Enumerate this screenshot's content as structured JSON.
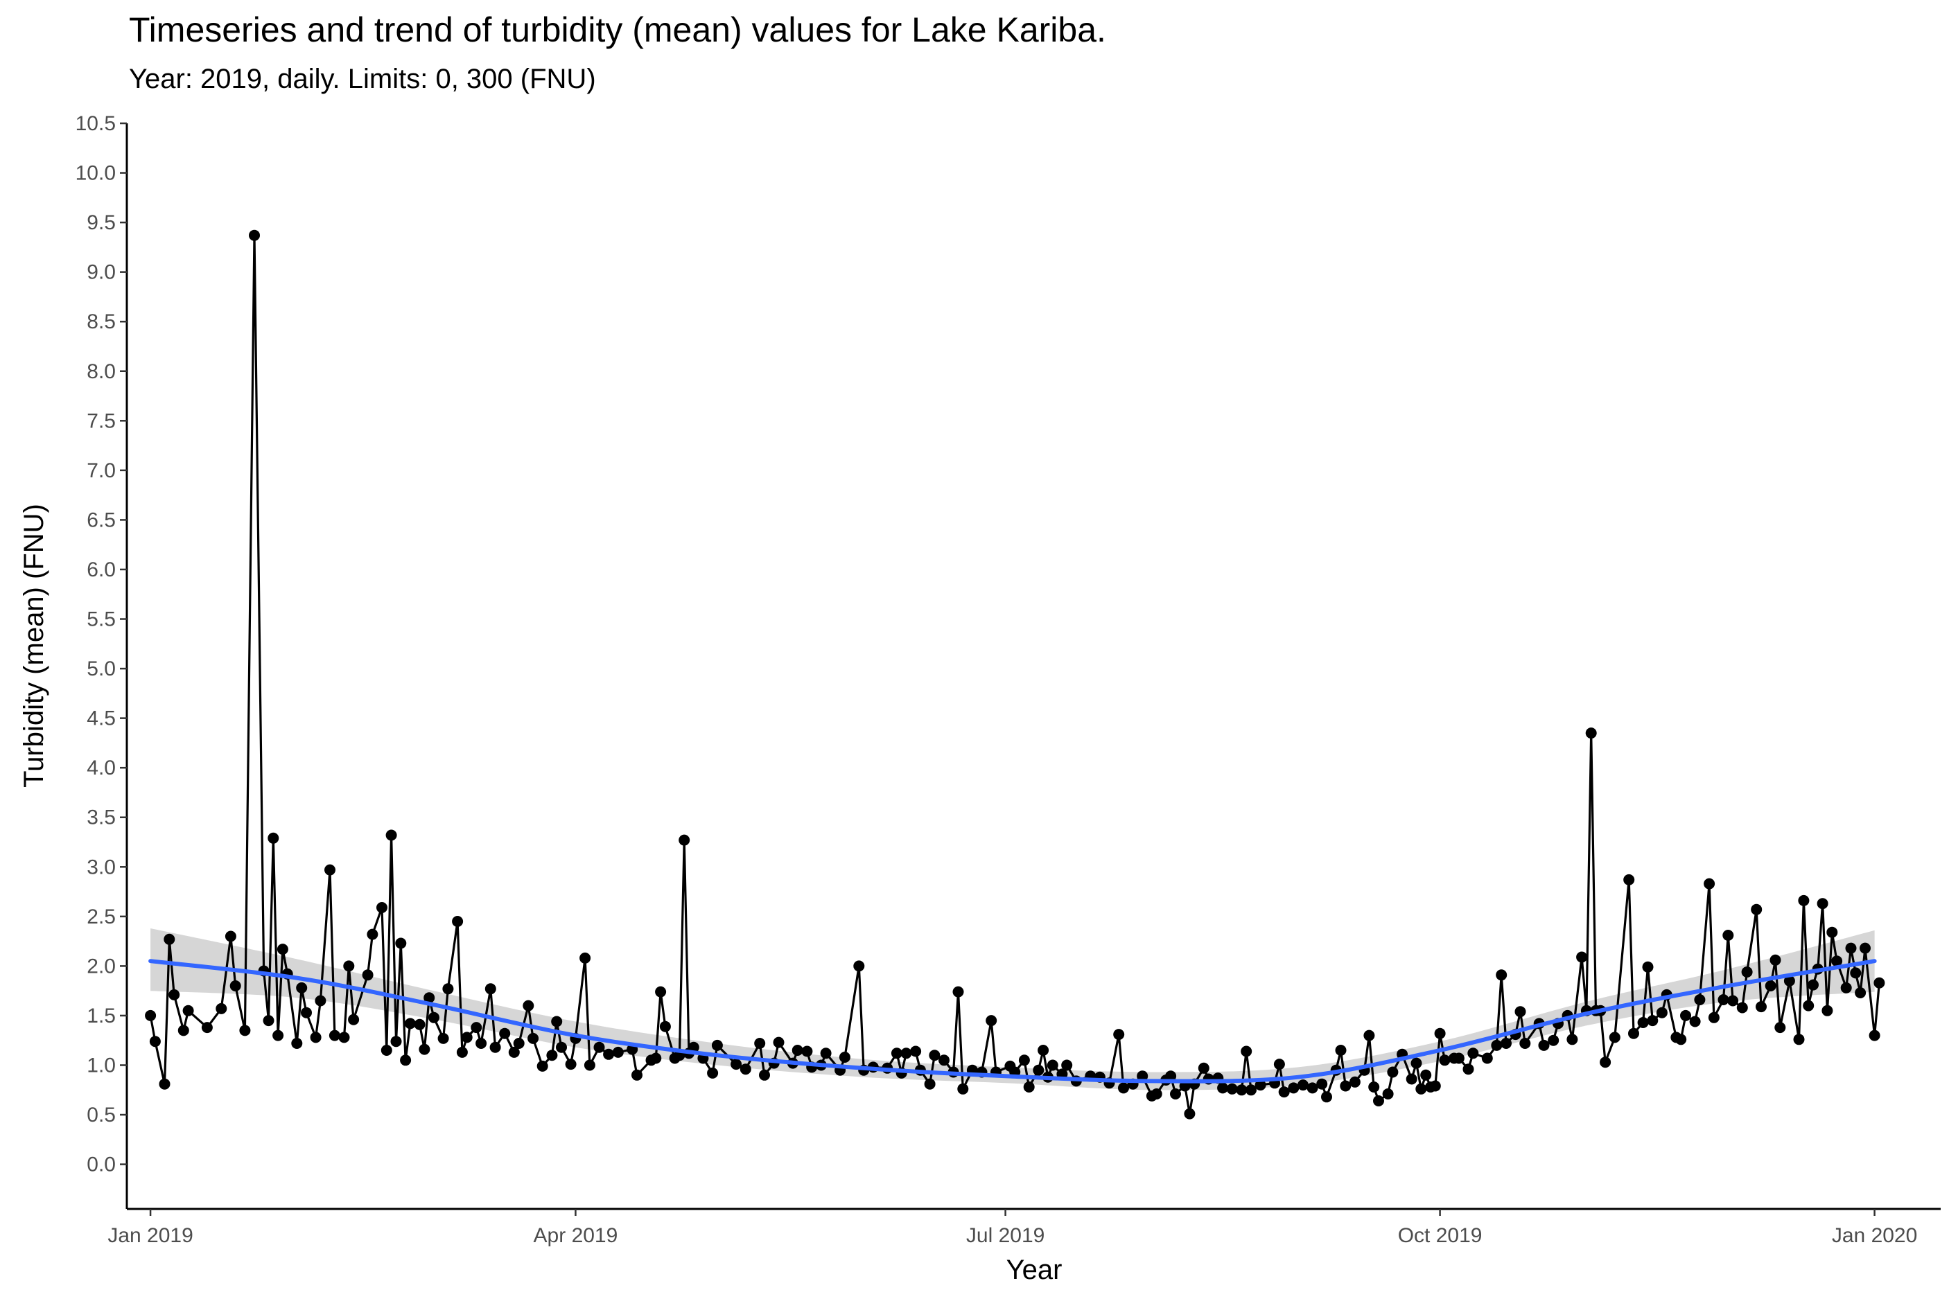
{
  "chart_data": {
    "type": "line",
    "title": "Timeseries and trend of turbidity (mean) values for Lake Kariba.",
    "subtitle": "Year: 2019, daily. Limits: 0, 300 (FNU)",
    "xlabel": "Year",
    "ylabel": "Turbidity (mean) (FNU)",
    "xlim": [
      "2018-12-27",
      "2020-01-15"
    ],
    "ylim": [
      -0.45,
      10.5
    ],
    "x_ticks": [
      {
        "date": "2019-01-01",
        "label": "Jan 2019"
      },
      {
        "date": "2019-04-01",
        "label": "Apr 2019"
      },
      {
        "date": "2019-07-01",
        "label": "Jul 2019"
      },
      {
        "date": "2019-10-01",
        "label": "Oct 2019"
      },
      {
        "date": "2020-01-01",
        "label": "Jan 2020"
      }
    ],
    "y_ticks": [
      0.0,
      0.5,
      1.0,
      1.5,
      2.0,
      2.5,
      3.0,
      3.5,
      4.0,
      4.5,
      5.0,
      5.5,
      6.0,
      6.5,
      7.0,
      7.5,
      8.0,
      8.5,
      9.0,
      9.5,
      10.0,
      10.5
    ],
    "grid": false,
    "colors": {
      "series": "#000000",
      "trend": "#3366FF",
      "band": "#c8c8c8"
    },
    "series": [
      {
        "style": "line+points",
        "points": [
          [
            "2019-01-01",
            1.5
          ],
          [
            "2019-01-02",
            1.24
          ],
          [
            "2019-01-04",
            0.81
          ],
          [
            "2019-01-05",
            2.27
          ],
          [
            "2019-01-06",
            1.71
          ],
          [
            "2019-01-08",
            1.35
          ],
          [
            "2019-01-09",
            1.55
          ],
          [
            "2019-01-13",
            1.38
          ],
          [
            "2019-01-16",
            1.57
          ],
          [
            "2019-01-18",
            2.3
          ],
          [
            "2019-01-19",
            1.8
          ],
          [
            "2019-01-21",
            1.35
          ],
          [
            "2019-01-23",
            9.37
          ],
          [
            "2019-01-25",
            1.95
          ],
          [
            "2019-01-26",
            1.45
          ],
          [
            "2019-01-27",
            3.29
          ],
          [
            "2019-01-28",
            1.3
          ],
          [
            "2019-01-29",
            2.17
          ],
          [
            "2019-01-30",
            1.92
          ],
          [
            "2019-02-01",
            1.22
          ],
          [
            "2019-02-02",
            1.78
          ],
          [
            "2019-02-03",
            1.53
          ],
          [
            "2019-02-05",
            1.28
          ],
          [
            "2019-02-06",
            1.65
          ],
          [
            "2019-02-08",
            2.97
          ],
          [
            "2019-02-09",
            1.3
          ],
          [
            "2019-02-11",
            1.28
          ],
          [
            "2019-02-12",
            2.0
          ],
          [
            "2019-02-13",
            1.46
          ],
          [
            "2019-02-16",
            1.91
          ],
          [
            "2019-02-17",
            2.32
          ],
          [
            "2019-02-19",
            2.59
          ],
          [
            "2019-02-20",
            1.15
          ],
          [
            "2019-02-21",
            3.32
          ],
          [
            "2019-02-22",
            1.24
          ],
          [
            "2019-02-23",
            2.23
          ],
          [
            "2019-02-24",
            1.05
          ],
          [
            "2019-02-25",
            1.42
          ],
          [
            "2019-02-27",
            1.41
          ],
          [
            "2019-02-28",
            1.16
          ],
          [
            "2019-03-01",
            1.68
          ],
          [
            "2019-03-02",
            1.48
          ],
          [
            "2019-03-04",
            1.27
          ],
          [
            "2019-03-05",
            1.77
          ],
          [
            "2019-03-07",
            2.45
          ],
          [
            "2019-03-08",
            1.13
          ],
          [
            "2019-03-09",
            1.28
          ],
          [
            "2019-03-11",
            1.38
          ],
          [
            "2019-03-12",
            1.22
          ],
          [
            "2019-03-14",
            1.77
          ],
          [
            "2019-03-15",
            1.18
          ],
          [
            "2019-03-17",
            1.32
          ],
          [
            "2019-03-19",
            1.13
          ],
          [
            "2019-03-20",
            1.22
          ],
          [
            "2019-03-22",
            1.6
          ],
          [
            "2019-03-23",
            1.27
          ],
          [
            "2019-03-25",
            0.99
          ],
          [
            "2019-03-27",
            1.1
          ],
          [
            "2019-03-28",
            1.44
          ],
          [
            "2019-03-29",
            1.18
          ],
          [
            "2019-03-31",
            1.01
          ],
          [
            "2019-04-01",
            1.27
          ],
          [
            "2019-04-03",
            2.08
          ],
          [
            "2019-04-04",
            1.0
          ],
          [
            "2019-04-06",
            1.18
          ],
          [
            "2019-04-08",
            1.11
          ],
          [
            "2019-04-10",
            1.13
          ],
          [
            "2019-04-13",
            1.16
          ],
          [
            "2019-04-14",
            0.9
          ],
          [
            "2019-04-17",
            1.05
          ],
          [
            "2019-04-18",
            1.07
          ],
          [
            "2019-04-19",
            1.74
          ],
          [
            "2019-04-20",
            1.39
          ],
          [
            "2019-04-22",
            1.07
          ],
          [
            "2019-04-23",
            1.1
          ],
          [
            "2019-04-24",
            3.27
          ],
          [
            "2019-04-25",
            1.12
          ],
          [
            "2019-04-26",
            1.18
          ],
          [
            "2019-04-28",
            1.07
          ],
          [
            "2019-04-30",
            0.92
          ],
          [
            "2019-05-01",
            1.2
          ],
          [
            "2019-05-05",
            1.01
          ],
          [
            "2019-05-07",
            0.96
          ],
          [
            "2019-05-10",
            1.22
          ],
          [
            "2019-05-11",
            0.9
          ],
          [
            "2019-05-13",
            1.02
          ],
          [
            "2019-05-14",
            1.23
          ],
          [
            "2019-05-17",
            1.02
          ],
          [
            "2019-05-18",
            1.15
          ],
          [
            "2019-05-20",
            1.14
          ],
          [
            "2019-05-21",
            0.98
          ],
          [
            "2019-05-23",
            1.0
          ],
          [
            "2019-05-24",
            1.12
          ],
          [
            "2019-05-27",
            0.95
          ],
          [
            "2019-05-28",
            1.08
          ],
          [
            "2019-05-31",
            2.0
          ],
          [
            "2019-06-01",
            0.95
          ],
          [
            "2019-06-03",
            0.98
          ],
          [
            "2019-06-06",
            0.97
          ],
          [
            "2019-06-08",
            1.12
          ],
          [
            "2019-06-09",
            0.92
          ],
          [
            "2019-06-10",
            1.12
          ],
          [
            "2019-06-12",
            1.14
          ],
          [
            "2019-06-13",
            0.95
          ],
          [
            "2019-06-15",
            0.81
          ],
          [
            "2019-06-16",
            1.1
          ],
          [
            "2019-06-18",
            1.05
          ],
          [
            "2019-06-20",
            0.93
          ],
          [
            "2019-06-21",
            1.74
          ],
          [
            "2019-06-22",
            0.76
          ],
          [
            "2019-06-24",
            0.95
          ],
          [
            "2019-06-26",
            0.93
          ],
          [
            "2019-06-28",
            1.45
          ],
          [
            "2019-06-29",
            0.93
          ],
          [
            "2019-07-02",
            0.99
          ],
          [
            "2019-07-03",
            0.93
          ],
          [
            "2019-07-05",
            1.05
          ],
          [
            "2019-07-06",
            0.78
          ],
          [
            "2019-07-08",
            0.95
          ],
          [
            "2019-07-09",
            1.15
          ],
          [
            "2019-07-10",
            0.88
          ],
          [
            "2019-07-11",
            1.0
          ],
          [
            "2019-07-13",
            0.91
          ],
          [
            "2019-07-14",
            1.0
          ],
          [
            "2019-07-16",
            0.84
          ],
          [
            "2019-07-19",
            0.89
          ],
          [
            "2019-07-21",
            0.88
          ],
          [
            "2019-07-23",
            0.82
          ],
          [
            "2019-07-25",
            1.31
          ],
          [
            "2019-07-26",
            0.77
          ],
          [
            "2019-07-28",
            0.81
          ],
          [
            "2019-07-30",
            0.89
          ],
          [
            "2019-08-01",
            0.69
          ],
          [
            "2019-08-02",
            0.71
          ],
          [
            "2019-08-04",
            0.85
          ],
          [
            "2019-08-05",
            0.89
          ],
          [
            "2019-08-06",
            0.71
          ],
          [
            "2019-08-08",
            0.79
          ],
          [
            "2019-08-09",
            0.51
          ],
          [
            "2019-08-10",
            0.81
          ],
          [
            "2019-08-12",
            0.97
          ],
          [
            "2019-08-13",
            0.86
          ],
          [
            "2019-08-15",
            0.87
          ],
          [
            "2019-08-16",
            0.77
          ],
          [
            "2019-08-18",
            0.76
          ],
          [
            "2019-08-20",
            0.75
          ],
          [
            "2019-08-21",
            1.14
          ],
          [
            "2019-08-22",
            0.75
          ],
          [
            "2019-08-24",
            0.8
          ],
          [
            "2019-08-27",
            0.82
          ],
          [
            "2019-08-28",
            1.01
          ],
          [
            "2019-08-29",
            0.73
          ],
          [
            "2019-08-31",
            0.77
          ],
          [
            "2019-09-02",
            0.8
          ],
          [
            "2019-09-04",
            0.77
          ],
          [
            "2019-09-06",
            0.81
          ],
          [
            "2019-09-07",
            0.68
          ],
          [
            "2019-09-09",
            0.95
          ],
          [
            "2019-09-10",
            1.15
          ],
          [
            "2019-09-11",
            0.79
          ],
          [
            "2019-09-13",
            0.83
          ],
          [
            "2019-09-15",
            0.95
          ],
          [
            "2019-09-16",
            1.3
          ],
          [
            "2019-09-17",
            0.78
          ],
          [
            "2019-09-18",
            0.64
          ],
          [
            "2019-09-20",
            0.71
          ],
          [
            "2019-09-21",
            0.93
          ],
          [
            "2019-09-23",
            1.11
          ],
          [
            "2019-09-25",
            0.86
          ],
          [
            "2019-09-26",
            1.02
          ],
          [
            "2019-09-27",
            0.76
          ],
          [
            "2019-09-28",
            0.9
          ],
          [
            "2019-09-29",
            0.78
          ],
          [
            "2019-09-30",
            0.79
          ],
          [
            "2019-10-01",
            1.32
          ],
          [
            "2019-10-02",
            1.05
          ],
          [
            "2019-10-04",
            1.07
          ],
          [
            "2019-10-05",
            1.07
          ],
          [
            "2019-10-07",
            0.96
          ],
          [
            "2019-10-08",
            1.12
          ],
          [
            "2019-10-11",
            1.07
          ],
          [
            "2019-10-13",
            1.2
          ],
          [
            "2019-10-14",
            1.91
          ],
          [
            "2019-10-15",
            1.22
          ],
          [
            "2019-10-17",
            1.31
          ],
          [
            "2019-10-18",
            1.54
          ],
          [
            "2019-10-19",
            1.22
          ],
          [
            "2019-10-22",
            1.42
          ],
          [
            "2019-10-23",
            1.2
          ],
          [
            "2019-10-25",
            1.25
          ],
          [
            "2019-10-26",
            1.42
          ],
          [
            "2019-10-28",
            1.5
          ],
          [
            "2019-10-29",
            1.26
          ],
          [
            "2019-10-31",
            2.09
          ],
          [
            "2019-11-01",
            1.55
          ],
          [
            "2019-11-02",
            4.35
          ],
          [
            "2019-11-03",
            1.55
          ],
          [
            "2019-11-04",
            1.55
          ],
          [
            "2019-11-05",
            1.03
          ],
          [
            "2019-11-07",
            1.28
          ],
          [
            "2019-11-10",
            2.87
          ],
          [
            "2019-11-11",
            1.32
          ],
          [
            "2019-11-13",
            1.43
          ],
          [
            "2019-11-14",
            1.99
          ],
          [
            "2019-11-15",
            1.45
          ],
          [
            "2019-11-17",
            1.53
          ],
          [
            "2019-11-18",
            1.71
          ],
          [
            "2019-11-20",
            1.28
          ],
          [
            "2019-11-21",
            1.26
          ],
          [
            "2019-11-22",
            1.5
          ],
          [
            "2019-11-24",
            1.44
          ],
          [
            "2019-11-25",
            1.66
          ],
          [
            "2019-11-27",
            2.83
          ],
          [
            "2019-11-28",
            1.48
          ],
          [
            "2019-11-30",
            1.66
          ],
          [
            "2019-12-01",
            2.31
          ],
          [
            "2019-12-02",
            1.65
          ],
          [
            "2019-12-04",
            1.58
          ],
          [
            "2019-12-05",
            1.94
          ],
          [
            "2019-12-07",
            2.57
          ],
          [
            "2019-12-08",
            1.59
          ],
          [
            "2019-12-10",
            1.8
          ],
          [
            "2019-12-11",
            2.06
          ],
          [
            "2019-12-12",
            1.38
          ],
          [
            "2019-12-14",
            1.85
          ],
          [
            "2019-12-16",
            1.26
          ],
          [
            "2019-12-17",
            2.66
          ],
          [
            "2019-12-18",
            1.6
          ],
          [
            "2019-12-19",
            1.81
          ],
          [
            "2019-12-20",
            1.97
          ],
          [
            "2019-12-21",
            2.63
          ],
          [
            "2019-12-22",
            1.55
          ],
          [
            "2019-12-23",
            2.34
          ],
          [
            "2019-12-24",
            2.05
          ],
          [
            "2019-12-26",
            1.78
          ],
          [
            "2019-12-27",
            2.18
          ],
          [
            "2019-12-28",
            1.93
          ],
          [
            "2019-12-29",
            1.73
          ],
          [
            "2019-12-30",
            2.18
          ],
          [
            "2020-01-01",
            1.3
          ],
          [
            "2020-01-02",
            1.83
          ]
        ]
      },
      {
        "style": "smooth-trend",
        "points": [
          [
            "2019-01-01",
            2.05
          ],
          [
            "2019-02-01",
            1.88
          ],
          [
            "2019-03-01",
            1.62
          ],
          [
            "2019-04-01",
            1.3
          ],
          [
            "2019-05-01",
            1.1
          ],
          [
            "2019-06-01",
            0.97
          ],
          [
            "2019-07-01",
            0.89
          ],
          [
            "2019-08-01",
            0.84
          ],
          [
            "2019-09-01",
            0.88
          ],
          [
            "2019-10-01",
            1.15
          ],
          [
            "2019-11-01",
            1.52
          ],
          [
            "2019-12-01",
            1.8
          ],
          [
            "2020-01-01",
            2.05
          ]
        ],
        "band_upper": [
          2.38,
          2.07,
          1.76,
          1.44,
          1.22,
          1.06,
          0.98,
          0.93,
          0.98,
          1.24,
          1.64,
          1.97,
          2.36
        ],
        "band_lower": [
          1.75,
          1.68,
          1.47,
          1.18,
          1.0,
          0.88,
          0.82,
          0.75,
          0.8,
          1.04,
          1.4,
          1.64,
          1.74
        ]
      }
    ]
  }
}
